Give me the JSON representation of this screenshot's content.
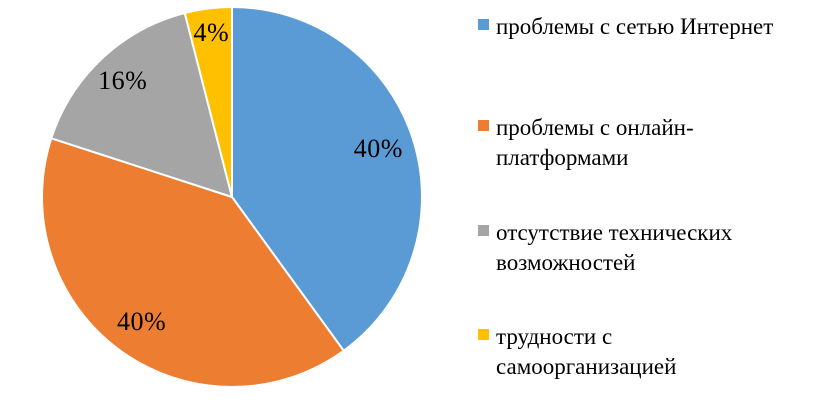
{
  "chart_data": {
    "type": "pie",
    "title": "",
    "unit": "percent",
    "direction": "clockwise",
    "start_angle_deg": 0,
    "legend_position": "right",
    "data_labels": "percent",
    "categories": [
      "проблемы с сетью Интернет",
      "проблемы с онлайн-платформами",
      "отсутствие технических возможностей",
      "трудности с самоорганизацией"
    ],
    "values": [
      40,
      40,
      16,
      4
    ],
    "slices": [
      {
        "label": "проблемы с сетью Интернет",
        "value": 40,
        "pct_label": "40%",
        "color": "#5B9BD5"
      },
      {
        "label": "проблемы с онлайн-платформами",
        "value": 40,
        "pct_label": "40%",
        "color": "#ED7D31"
      },
      {
        "label": "отсутствие технических возможностей",
        "value": 16,
        "pct_label": "16%",
        "color": "#A5A5A5"
      },
      {
        "label": "трудности с самоорганизацией",
        "value": 4,
        "pct_label": "4%",
        "color": "#FFC000"
      }
    ]
  },
  "legend": {
    "items": [
      {
        "lines": [
          "проблемы с сетью Интернет"
        ],
        "color": "#5B9BD5"
      },
      {
        "lines": [
          "проблемы с онлайн-",
          "платформами"
        ],
        "color": "#ED7D31"
      },
      {
        "lines": [
          "отсутствие технических",
          "возможностей"
        ],
        "color": "#A5A5A5"
      },
      {
        "lines": [
          "трудности с",
          "самоорганизацией"
        ],
        "color": "#FFC000"
      }
    ]
  },
  "colors": {
    "background": "#FFFFFF",
    "slice_border": "#FFFFFF",
    "label_text": "#000000"
  }
}
